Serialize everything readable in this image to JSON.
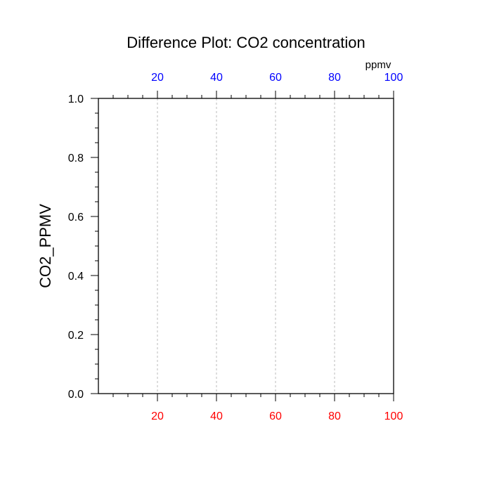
{
  "chart_data": {
    "type": "line",
    "title": "Difference Plot: CO2 concentration",
    "ylabel": "CO2_PPMV",
    "top_axis_units": "ppmv",
    "xlim": [
      0,
      100
    ],
    "ylim": [
      0,
      1
    ],
    "x_ticks": [
      20,
      40,
      60,
      80,
      100
    ],
    "x_tick_labels": [
      "20",
      "40",
      "60",
      "80",
      "100"
    ],
    "x_minor_step": 5,
    "y_ticks": [
      0,
      0.2,
      0.4,
      0.6,
      0.8,
      1.0
    ],
    "y_tick_labels": [
      "0.0",
      "0.2",
      "0.4",
      "0.6",
      "0.8",
      "1.0"
    ],
    "y_minor_step": 0.05,
    "vertical_gridlines_at": [
      20,
      40,
      60,
      80
    ],
    "grid": true,
    "series": [],
    "colors": {
      "bottom_tick_labels": "#ff0000",
      "top_tick_labels": "#0000ff",
      "axes": "#000000",
      "grid": "#bbbbbb"
    }
  }
}
